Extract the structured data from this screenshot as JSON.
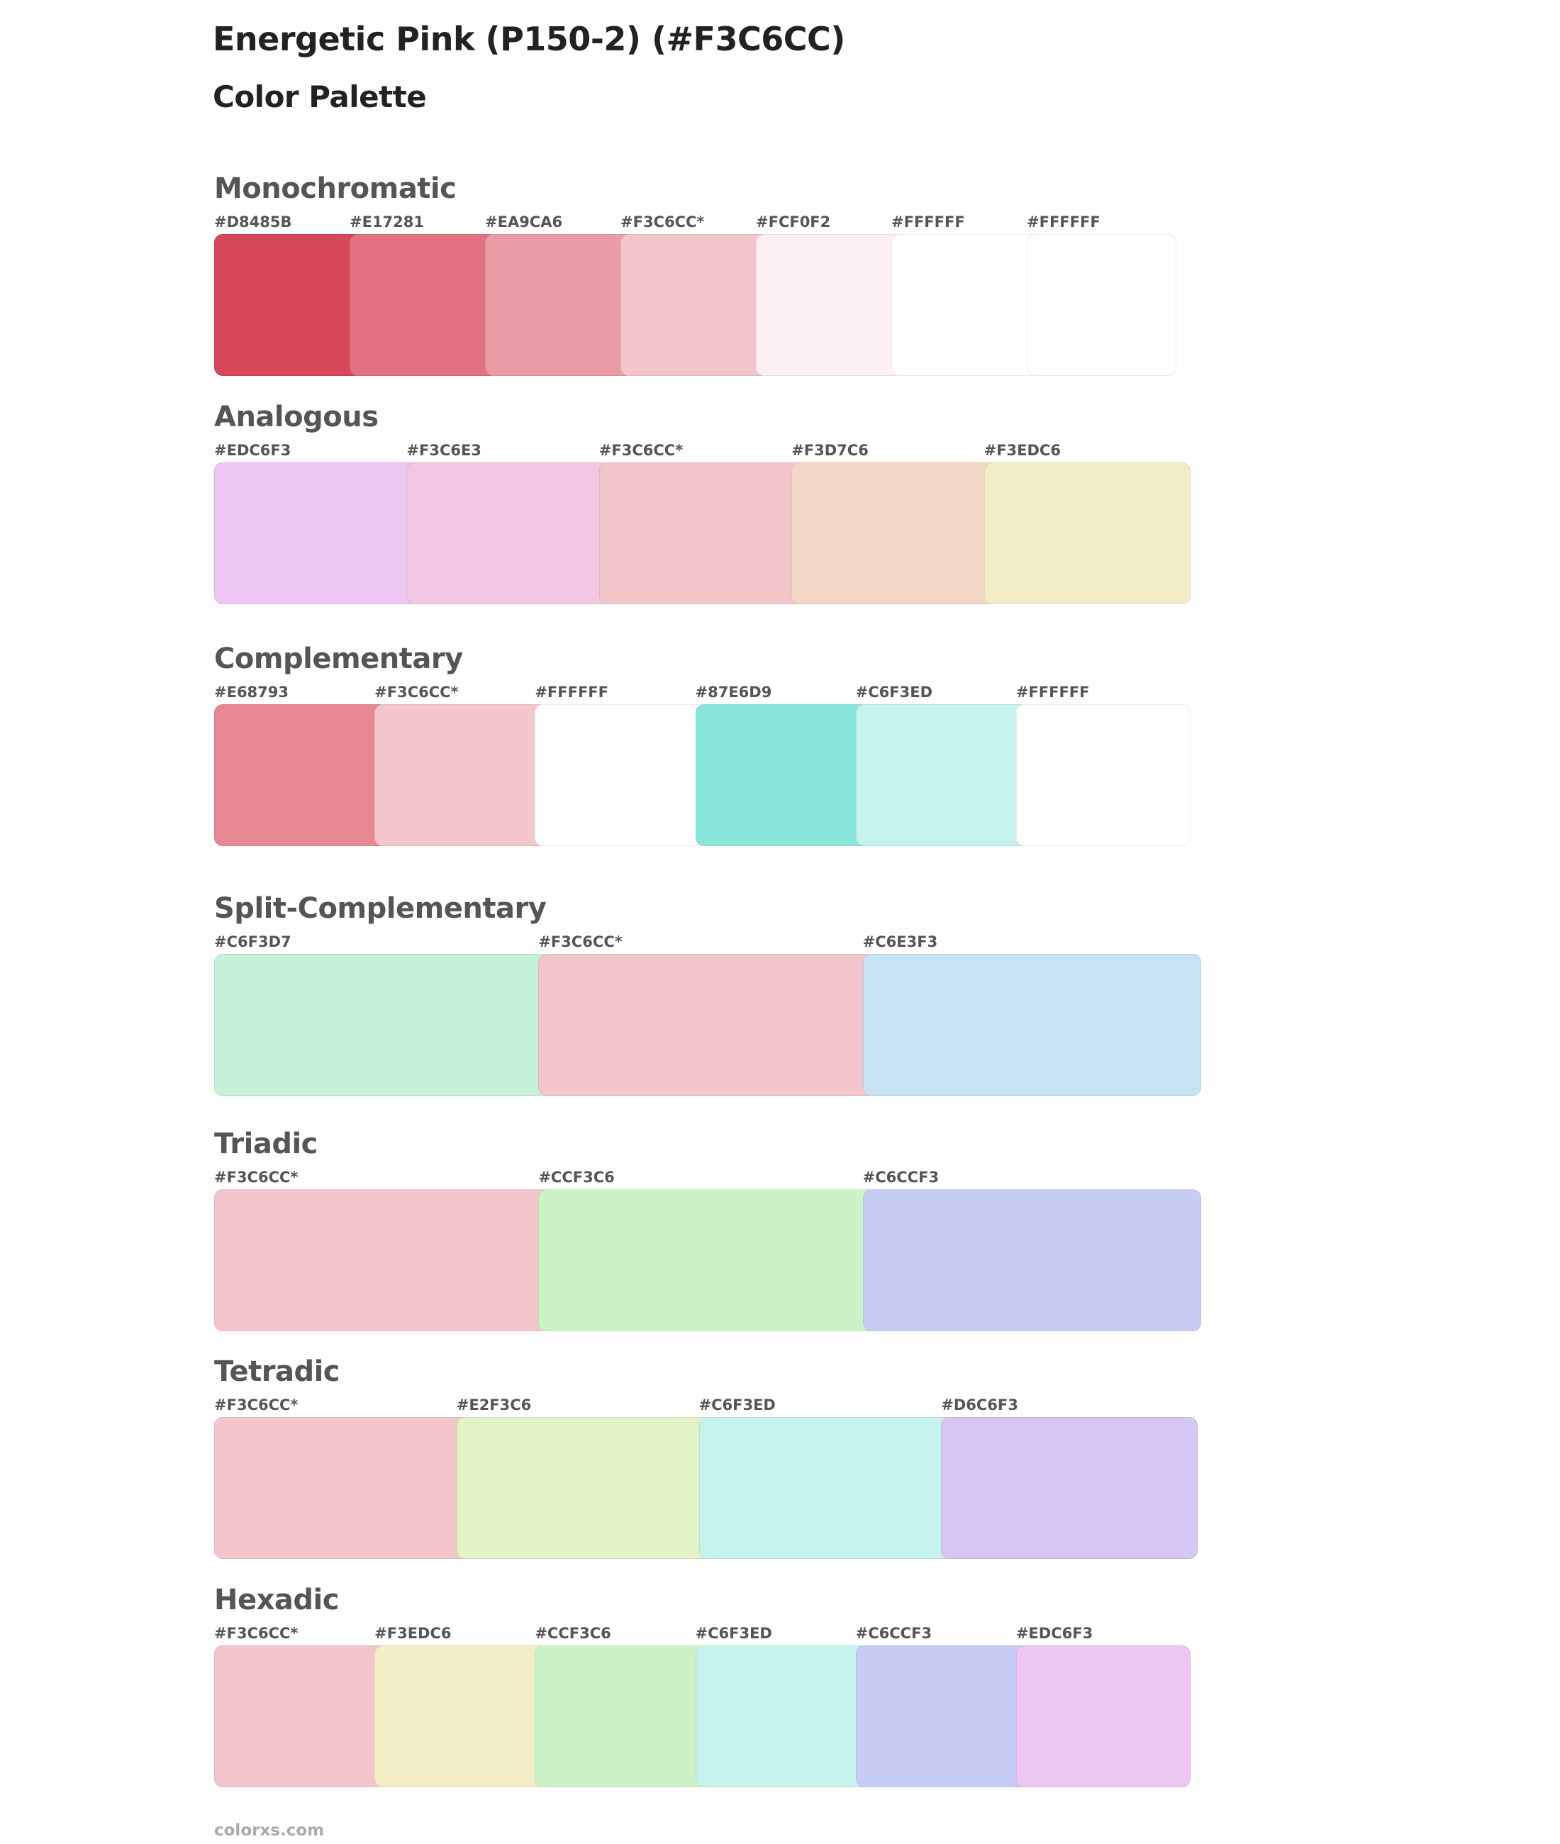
{
  "header": {
    "title": "Energetic Pink (P150-2) (#F3C6CC)",
    "subtitle": "Color Palette"
  },
  "sections": [
    {
      "name": "Monochromatic",
      "swatches": [
        {
          "label": "#D8485B",
          "color": "#D8485B"
        },
        {
          "label": "#E17281",
          "color": "#E17281"
        },
        {
          "label": "#EA9CA6",
          "color": "#EA9CA6"
        },
        {
          "label": "#F3C6CC*",
          "color": "#F3C6CC"
        },
        {
          "label": "#FCF0F2",
          "color": "#FCF0F2"
        },
        {
          "label": "#FFFFFF",
          "color": "#FFFFFF"
        },
        {
          "label": "#FFFFFF",
          "color": "#FFFFFF"
        }
      ]
    },
    {
      "name": "Analogous",
      "swatches": [
        {
          "label": "#EDC6F3",
          "color": "#EDC6F3"
        },
        {
          "label": "#F3C6E3",
          "color": "#F3C6E3"
        },
        {
          "label": "#F3C6CC*",
          "color": "#F3C6CC"
        },
        {
          "label": "#F3D7C6",
          "color": "#F3D7C6"
        },
        {
          "label": "#F3EDC6",
          "color": "#F3EDC6"
        }
      ]
    },
    {
      "name": "Complementary",
      "swatches": [
        {
          "label": "#E68793",
          "color": "#E68793"
        },
        {
          "label": "#F3C6CC*",
          "color": "#F3C6CC"
        },
        {
          "label": "#FFFFFF",
          "color": "#FFFFFF"
        },
        {
          "label": "#87E6D9",
          "color": "#87E6D9"
        },
        {
          "label": "#C6F3ED",
          "color": "#C6F3ED"
        },
        {
          "label": "#FFFFFF",
          "color": "#FFFFFF"
        }
      ]
    },
    {
      "name": "Split-Complementary",
      "swatches": [
        {
          "label": "#C6F3D7",
          "color": "#C6F3D7"
        },
        {
          "label": "#F3C6CC*",
          "color": "#F3C6CC"
        },
        {
          "label": "#C6E3F3",
          "color": "#C6E3F3"
        }
      ]
    },
    {
      "name": "Triadic",
      "swatches": [
        {
          "label": "#F3C6CC*",
          "color": "#F3C6CC"
        },
        {
          "label": "#CCF3C6",
          "color": "#CCF3C6"
        },
        {
          "label": "#C6CCF3",
          "color": "#C6CCF3"
        }
      ]
    },
    {
      "name": "Tetradic",
      "swatches": [
        {
          "label": "#F3C6CC*",
          "color": "#F3C6CC"
        },
        {
          "label": "#E2F3C6",
          "color": "#E2F3C6"
        },
        {
          "label": "#C6F3ED",
          "color": "#C6F3ED"
        },
        {
          "label": "#D6C6F3",
          "color": "#D6C6F3"
        }
      ]
    },
    {
      "name": "Hexadic",
      "swatches": [
        {
          "label": "#F3C6CC*",
          "color": "#F3C6CC"
        },
        {
          "label": "#F3EDC6",
          "color": "#F3EDC6"
        },
        {
          "label": "#CCF3C6",
          "color": "#CCF3C6"
        },
        {
          "label": "#C6F3ED",
          "color": "#C6F3ED"
        },
        {
          "label": "#C6CCF3",
          "color": "#C6CCF3"
        },
        {
          "label": "#EDC6F3",
          "color": "#EDC6F3"
        }
      ]
    }
  ],
  "footer": "colorxs.com"
}
